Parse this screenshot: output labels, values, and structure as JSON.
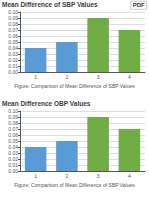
{
  "chart_data": [
    {
      "type": "bar",
      "title": "Mean Difference of SBP Values",
      "categories": [
        "1",
        "2",
        "3",
        "4"
      ],
      "values": [
        0.04,
        0.05,
        0.09,
        0.07
      ],
      "colors": [
        "#5B9BD5",
        "#5B9BD5",
        "#70AD47",
        "#70AD47"
      ],
      "ylim": [
        0,
        0.1
      ],
      "yticks": [
        {
          "value": 0.0,
          "label": "0.00"
        },
        {
          "value": 0.01,
          "label": "0.01"
        },
        {
          "value": 0.02,
          "label": "0.02"
        },
        {
          "value": 0.03,
          "label": "0.03"
        },
        {
          "value": 0.04,
          "label": "0.04"
        },
        {
          "value": 0.05,
          "label": "0.05"
        },
        {
          "value": 0.06,
          "label": "0.06"
        },
        {
          "value": 0.07,
          "label": "0.07"
        },
        {
          "value": 0.08,
          "label": "0.08"
        },
        {
          "value": 0.09,
          "label": "0.09"
        },
        {
          "value": 0.1,
          "label": "0.10"
        }
      ],
      "grid": true,
      "annotations": [
        "Figure: Comparison of Mean Difference of SBP Values",
        "PDF"
      ]
    },
    {
      "type": "bar",
      "title": "Mean Difference OBP Values",
      "categories": [
        "1",
        "2",
        "3",
        "4"
      ],
      "values": [
        0.04,
        0.05,
        0.09,
        0.07
      ],
      "colors": [
        "#5B9BD5",
        "#5B9BD5",
        "#70AD47",
        "#70AD47"
      ],
      "ylim": [
        0,
        0.1
      ],
      "yticks": [
        {
          "value": 0.0,
          "label": "0.00"
        },
        {
          "value": 0.01,
          "label": "0.01"
        },
        {
          "value": 0.02,
          "label": "0.02"
        },
        {
          "value": 0.03,
          "label": "0.03"
        },
        {
          "value": 0.04,
          "label": "0.04"
        },
        {
          "value": 0.05,
          "label": "0.05"
        },
        {
          "value": 0.06,
          "label": "0.06"
        },
        {
          "value": 0.07,
          "label": "0.07"
        },
        {
          "value": 0.08,
          "label": "0.08"
        },
        {
          "value": 0.09,
          "label": "0.09"
        },
        {
          "value": 0.1,
          "label": "0.10"
        }
      ],
      "grid": true,
      "annotations": [
        "Figure: Comparison of Mean Difference of SBP Values"
      ]
    }
  ]
}
